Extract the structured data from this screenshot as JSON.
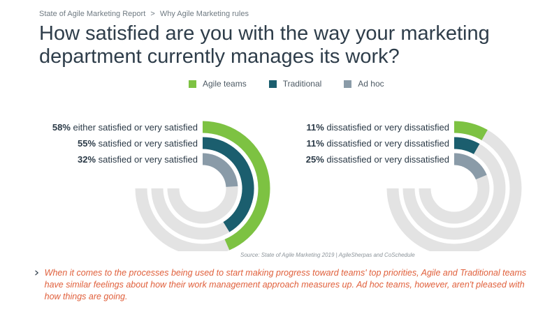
{
  "breadcrumb": {
    "items": [
      "State of Agile Marketing Report",
      "Why Agile Marketing rules"
    ],
    "separator": ">"
  },
  "title": "How satisfied are you with the way your marketing department currently manages its work?",
  "legend": [
    {
      "label": "Agile teams",
      "color": "#7dc242"
    },
    {
      "label": "Traditional",
      "color": "#1b5e6e"
    },
    {
      "label": "Ad hoc",
      "color": "#8a9ba8"
    }
  ],
  "chart_data": [
    {
      "type": "radial-bar",
      "title": "",
      "series": [
        {
          "name": "Agile teams",
          "value": 58,
          "pct_label": "58%",
          "label": "either satisfied or very satisfied",
          "color": "#7dc242"
        },
        {
          "name": "Traditional",
          "value": 55,
          "pct_label": "55%",
          "label": "satisfied or very satisfied",
          "color": "#1b5e6e"
        },
        {
          "name": "Ad hoc",
          "value": 32,
          "pct_label": "32%",
          "label": "satisfied or very satisfied",
          "color": "#8a9ba8"
        }
      ],
      "range": [
        0,
        100
      ],
      "track_color": "#e3e3e3"
    },
    {
      "type": "radial-bar",
      "title": "",
      "series": [
        {
          "name": "Agile teams",
          "value": 11,
          "pct_label": "11%",
          "label": "dissatisfied or very dissatisfied",
          "color": "#7dc242"
        },
        {
          "name": "Traditional",
          "value": 11,
          "pct_label": "11%",
          "label": "dissatisfied or very dissatisfied",
          "color": "#1b5e6e"
        },
        {
          "name": "Ad hoc",
          "value": 25,
          "pct_label": "25%",
          "label": "dissatisfied or very dissatisfied",
          "color": "#8a9ba8"
        }
      ],
      "range": [
        0,
        100
      ],
      "track_color": "#e3e3e3"
    }
  ],
  "source": "Source: State of Agile Marketing 2019 | AgileSherpas and CoSchedule",
  "insight": {
    "icon": "chevron-right-icon",
    "text": "When it comes to the processes being used to start making progress toward teams' top priorities, Agile and Traditional teams have similar feelings about how their work management approach measures up. Ad hoc teams, however, aren't pleased with how things are going."
  }
}
